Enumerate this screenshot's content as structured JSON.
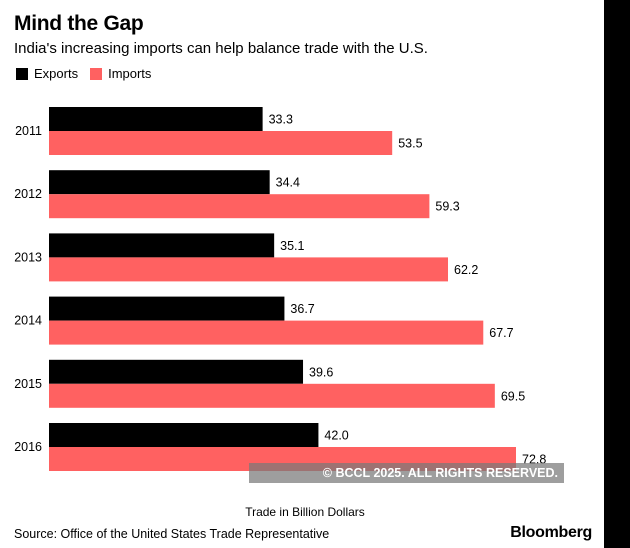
{
  "header": {
    "title": "Mind the Gap",
    "subtitle": "India's increasing imports can help balance trade with the U.S."
  },
  "chart_data": {
    "type": "bar",
    "orientation": "horizontal",
    "title": "Mind the Gap",
    "subtitle": "India's increasing imports can help balance trade with the U.S.",
    "categories": [
      "2011",
      "2012",
      "2013",
      "2014",
      "2015",
      "2016"
    ],
    "series": [
      {
        "name": "Exports",
        "color": "#000000",
        "values": [
          33.3,
          34.4,
          35.1,
          36.7,
          39.6,
          42.0
        ],
        "labels": [
          "33.3",
          "34.4",
          "35.1",
          "36.7",
          "39.6",
          "42.0"
        ]
      },
      {
        "name": "Imports",
        "color": "#ff6161",
        "values": [
          53.5,
          59.3,
          62.2,
          67.7,
          69.5,
          72.8
        ],
        "labels": [
          "53.5",
          "59.3",
          "62.2",
          "67.7",
          "69.5",
          "72.8"
        ]
      }
    ],
    "xlabel": "Trade in Billion Dollars",
    "ylabel": "",
    "xlim": [
      0,
      72.8
    ],
    "legend_position": "top-left",
    "grid": false
  },
  "footer": {
    "xlabel": "Trade in Billion Dollars",
    "source": "Source: Office of the United States Trade Representative",
    "brand": "Bloomberg",
    "watermark": "© BCCL 2025. ALL RIGHTS RESERVED."
  }
}
